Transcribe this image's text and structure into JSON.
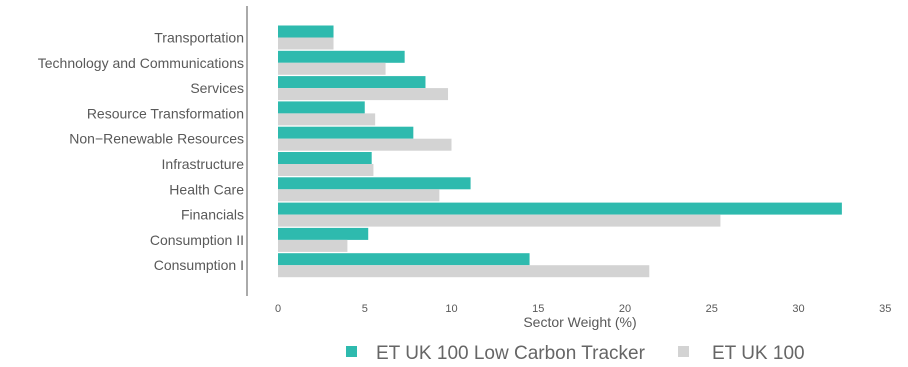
{
  "chart_data": {
    "type": "bar",
    "orientation": "horizontal",
    "xlabel": "Sector Weight (%)",
    "ylabel": "",
    "xlim": [
      0,
      35
    ],
    "xticks": [
      0,
      5,
      10,
      15,
      20,
      25,
      30,
      35
    ],
    "grid": false,
    "legend_position": "bottom",
    "categories": [
      "Transportation",
      "Technology and Communications",
      "Services",
      "Resource Transformation",
      "Non−Renewable Resources",
      "Infrastructure",
      "Health Care",
      "Financials",
      "Consumption II",
      "Consumption I"
    ],
    "series": [
      {
        "name": "ET UK 100 Low Carbon Tracker",
        "color": "#2ebaae",
        "values": [
          3.2,
          7.3,
          8.5,
          5.0,
          7.8,
          5.4,
          11.1,
          32.5,
          5.2,
          14.5
        ]
      },
      {
        "name": "ET UK 100",
        "color": "#d3d3d3",
        "values": [
          3.2,
          6.2,
          9.8,
          5.6,
          10.0,
          5.5,
          9.3,
          25.5,
          4.0,
          21.4
        ]
      }
    ]
  }
}
